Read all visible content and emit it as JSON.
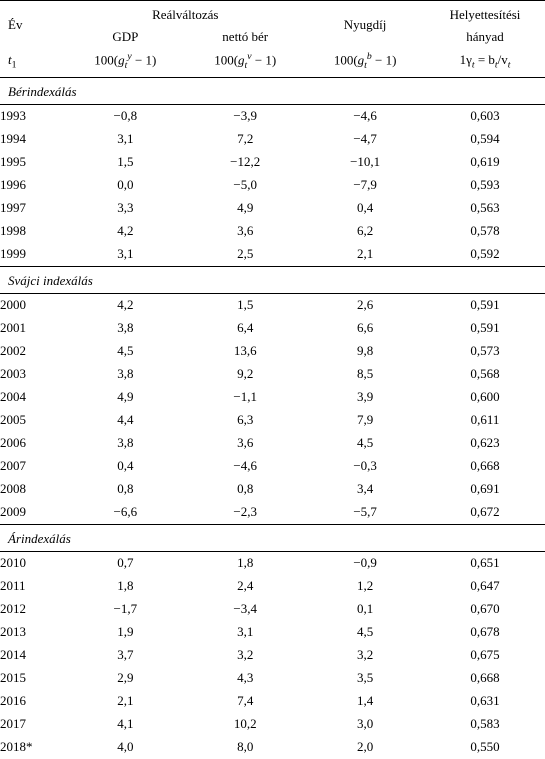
{
  "header": {
    "col1_line1": "Év",
    "col1_line3": "t",
    "col1_line3_sub": "1",
    "realvalt": "Reálváltozás",
    "nyugdij": "Nyugdíj",
    "helyett_line1": "Helyettesítési",
    "helyett_line2": "hányad",
    "gdp": "GDP",
    "nettober": "nettó bér",
    "f_gdp_pre": "100(",
    "f_gdp_g": "g",
    "f_gdp_sub": "t",
    "f_gdp_sup": "y",
    "f_gdp_post": " − 1)",
    "f_wage_pre": "100(",
    "f_wage_g": "g",
    "f_wage_sub": "t",
    "f_wage_sup": "v",
    "f_wage_post": " − 1)",
    "f_pen_pre": "100(",
    "f_pen_g": "g",
    "f_pen_sub": "t",
    "f_pen_sup": "b",
    "f_pen_post": " − 1)",
    "f_ratio_pre": "1γ",
    "f_ratio_sub1": "t",
    "f_ratio_mid": " = b",
    "f_ratio_sub2": "t",
    "f_ratio_slash": "/v",
    "f_ratio_sub3": "t"
  },
  "sections": [
    {
      "title": "Bérindexálás",
      "rows": [
        {
          "year": "1993",
          "gdp": "−0,8",
          "wage": "−3,9",
          "pension": "−4,6",
          "ratio": "0,603"
        },
        {
          "year": "1994",
          "gdp": "3,1",
          "wage": "7,2",
          "pension": "−4,7",
          "ratio": "0,594"
        },
        {
          "year": "1995",
          "gdp": "1,5",
          "wage": "−12,2",
          "pension": "−10,1",
          "ratio": "0,619"
        },
        {
          "year": "1996",
          "gdp": "0,0",
          "wage": "−5,0",
          "pension": "−7,9",
          "ratio": "0,593"
        },
        {
          "year": "1997",
          "gdp": "3,3",
          "wage": "4,9",
          "pension": "0,4",
          "ratio": "0,563"
        },
        {
          "year": "1998",
          "gdp": "4,2",
          "wage": "3,6",
          "pension": "6,2",
          "ratio": "0,578"
        },
        {
          "year": "1999",
          "gdp": "3,1",
          "wage": "2,5",
          "pension": "2,1",
          "ratio": "0,592"
        }
      ]
    },
    {
      "title": "Svájci indexálás",
      "rows": [
        {
          "year": "2000",
          "gdp": "4,2",
          "wage": "1,5",
          "pension": "2,6",
          "ratio": "0,591"
        },
        {
          "year": "2001",
          "gdp": "3,8",
          "wage": "6,4",
          "pension": "6,6",
          "ratio": "0,591"
        },
        {
          "year": "2002",
          "gdp": "4,5",
          "wage": "13,6",
          "pension": "9,8",
          "ratio": "0,573"
        },
        {
          "year": "2003",
          "gdp": "3,8",
          "wage": "9,2",
          "pension": "8,5",
          "ratio": "0,568"
        },
        {
          "year": "2004",
          "gdp": "4,9",
          "wage": "−1,1",
          "pension": "3,9",
          "ratio": "0,600"
        },
        {
          "year": "2005",
          "gdp": "4,4",
          "wage": "6,3",
          "pension": "7,9",
          "ratio": "0,611"
        },
        {
          "year": "2006",
          "gdp": "3,8",
          "wage": "3,6",
          "pension": "4,5",
          "ratio": "0,623"
        },
        {
          "year": "2007",
          "gdp": "0,4",
          "wage": "−4,6",
          "pension": "−0,3",
          "ratio": "0,668"
        },
        {
          "year": "2008",
          "gdp": "0,8",
          "wage": "0,8",
          "pension": "3,4",
          "ratio": "0,691"
        },
        {
          "year": "2009",
          "gdp": "−6,6",
          "wage": "−2,3",
          "pension": "−5,7",
          "ratio": "0,672"
        }
      ]
    },
    {
      "title": "Árindexálás",
      "rows": [
        {
          "year": "2010",
          "gdp": "0,7",
          "wage": "1,8",
          "pension": "−0,9",
          "ratio": "0,651"
        },
        {
          "year": "2011",
          "gdp": "1,8",
          "wage": "2,4",
          "pension": "1,2",
          "ratio": "0,647"
        },
        {
          "year": "2012",
          "gdp": "−1,7",
          "wage": "−3,4",
          "pension": "0,1",
          "ratio": "0,670"
        },
        {
          "year": "2013",
          "gdp": "1,9",
          "wage": "3,1",
          "pension": "4,5",
          "ratio": "0,678"
        },
        {
          "year": "2014",
          "gdp": "3,7",
          "wage": "3,2",
          "pension": "3,2",
          "ratio": "0,675"
        },
        {
          "year": "2015",
          "gdp": "2,9",
          "wage": "4,3",
          "pension": "3,5",
          "ratio": "0,668"
        },
        {
          "year": "2016",
          "gdp": "2,1",
          "wage": "7,4",
          "pension": "1,4",
          "ratio": "0,631"
        },
        {
          "year": "2017",
          "gdp": "4,1",
          "wage": "10,2",
          "pension": "3,0",
          "ratio": "0,583"
        },
        {
          "year": "2018*",
          "gdp": "4,0",
          "wage": "8,0",
          "pension": "2,0",
          "ratio": "0,550"
        }
      ]
    }
  ]
}
